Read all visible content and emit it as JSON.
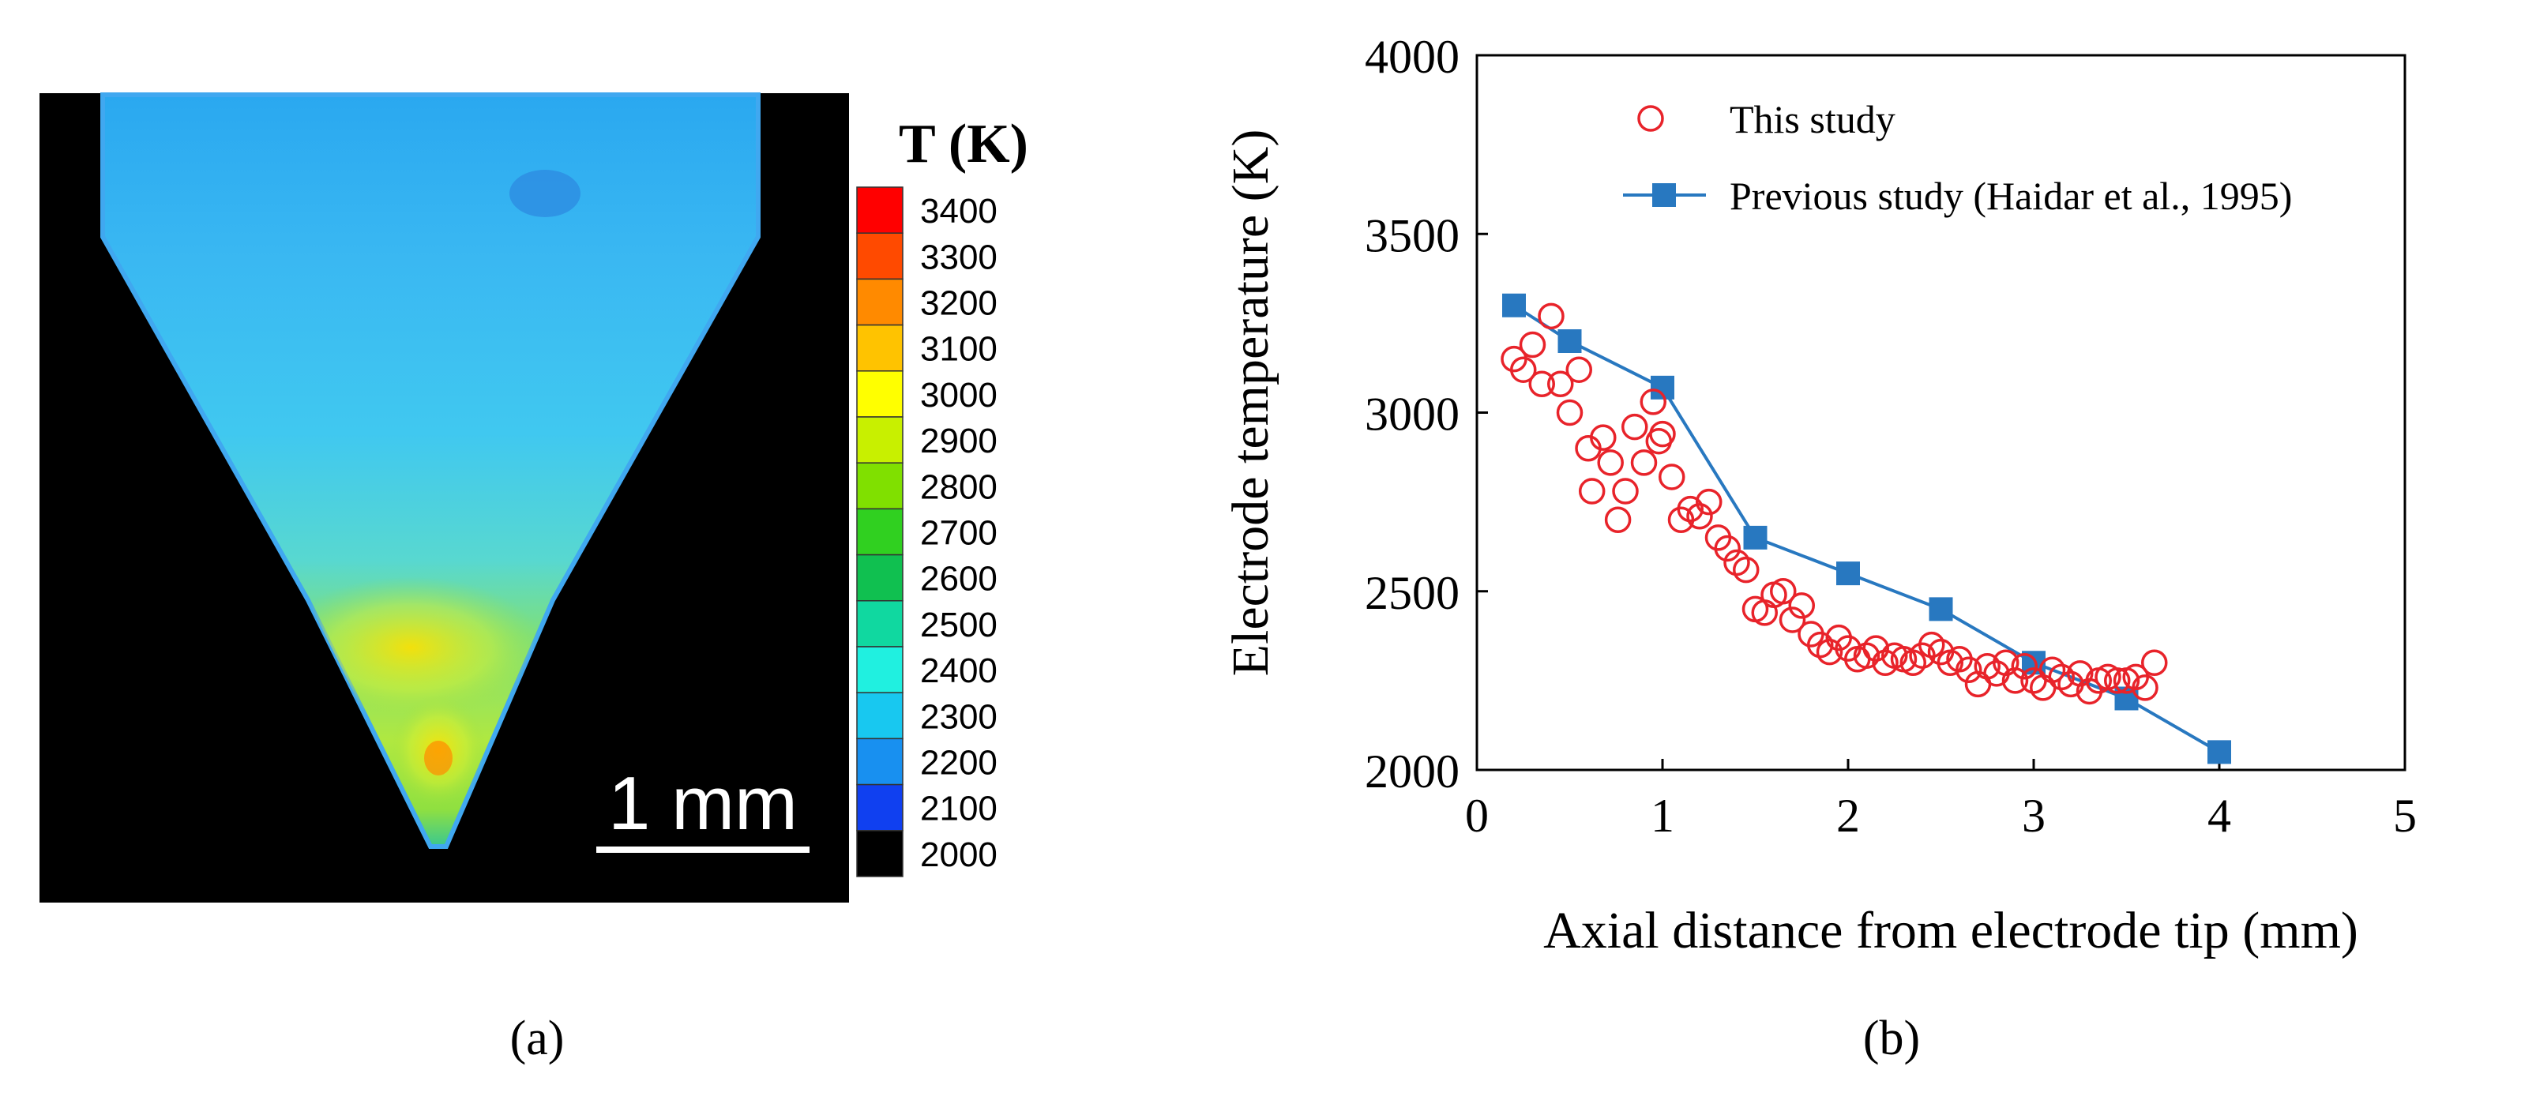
{
  "panel_a": {
    "label": "(a)",
    "colorbar_title": "T (K)",
    "colorbar_levels": [
      "3400",
      "3300",
      "3200",
      "3100",
      "3000",
      "2900",
      "2800",
      "2700",
      "2600",
      "2500",
      "2400",
      "2300",
      "2200",
      "2100",
      "2000"
    ],
    "colorbar_colors": [
      "#ff0000",
      "#ff4a00",
      "#ff8a00",
      "#ffc300",
      "#ffff00",
      "#c8f000",
      "#80e000",
      "#30d020",
      "#10c050",
      "#10d8a0",
      "#20f0e0",
      "#18c8f0",
      "#1890f0",
      "#1040f0",
      "#000000"
    ],
    "scale_bar_label": "1 mm",
    "background_color": "#000000"
  },
  "panel_b": {
    "label": "(b)",
    "chart_data": {
      "type": "scatter",
      "xlabel": "Axial distance from electrode tip (mm)",
      "ylabel": "Electrode temperature (K)",
      "xlim": [
        0,
        5
      ],
      "ylim": [
        2000,
        4000
      ],
      "xticks": [
        0,
        1,
        2,
        3,
        4,
        5
      ],
      "yticks": [
        2000,
        2500,
        3000,
        3500,
        4000
      ],
      "legend_position": "top-left",
      "series": [
        {
          "name": "This study",
          "marker": "open-circle",
          "color": "#e8232a",
          "points": [
            [
              0.2,
              3150
            ],
            [
              0.25,
              3120
            ],
            [
              0.3,
              3190
            ],
            [
              0.35,
              3080
            ],
            [
              0.4,
              3270
            ],
            [
              0.45,
              3080
            ],
            [
              0.5,
              3000
            ],
            [
              0.55,
              3120
            ],
            [
              0.6,
              2900
            ],
            [
              0.62,
              2780
            ],
            [
              0.68,
              2930
            ],
            [
              0.72,
              2860
            ],
            [
              0.76,
              2700
            ],
            [
              0.8,
              2780
            ],
            [
              0.85,
              2960
            ],
            [
              0.9,
              2860
            ],
            [
              0.95,
              3030
            ],
            [
              0.98,
              2920
            ],
            [
              1.0,
              2940
            ],
            [
              1.05,
              2820
            ],
            [
              1.1,
              2700
            ],
            [
              1.15,
              2730
            ],
            [
              1.2,
              2710
            ],
            [
              1.25,
              2750
            ],
            [
              1.3,
              2650
            ],
            [
              1.35,
              2620
            ],
            [
              1.4,
              2580
            ],
            [
              1.45,
              2560
            ],
            [
              1.5,
              2450
            ],
            [
              1.55,
              2440
            ],
            [
              1.6,
              2490
            ],
            [
              1.65,
              2500
            ],
            [
              1.7,
              2420
            ],
            [
              1.75,
              2460
            ],
            [
              1.8,
              2380
            ],
            [
              1.85,
              2350
            ],
            [
              1.9,
              2330
            ],
            [
              1.95,
              2370
            ],
            [
              2.0,
              2340
            ],
            [
              2.05,
              2310
            ],
            [
              2.1,
              2320
            ],
            [
              2.15,
              2340
            ],
            [
              2.2,
              2300
            ],
            [
              2.25,
              2320
            ],
            [
              2.3,
              2310
            ],
            [
              2.35,
              2300
            ],
            [
              2.4,
              2320
            ],
            [
              2.45,
              2350
            ],
            [
              2.5,
              2330
            ],
            [
              2.55,
              2300
            ],
            [
              2.6,
              2310
            ],
            [
              2.65,
              2280
            ],
            [
              2.7,
              2240
            ],
            [
              2.75,
              2290
            ],
            [
              2.8,
              2270
            ],
            [
              2.85,
              2300
            ],
            [
              2.9,
              2250
            ],
            [
              2.95,
              2290
            ],
            [
              3.0,
              2250
            ],
            [
              3.05,
              2230
            ],
            [
              3.1,
              2280
            ],
            [
              3.15,
              2260
            ],
            [
              3.2,
              2240
            ],
            [
              3.25,
              2270
            ],
            [
              3.3,
              2220
            ],
            [
              3.35,
              2250
            ],
            [
              3.4,
              2260
            ],
            [
              3.45,
              2250
            ],
            [
              3.5,
              2250
            ],
            [
              3.55,
              2260
            ],
            [
              3.6,
              2230
            ],
            [
              3.65,
              2300
            ]
          ]
        },
        {
          "name": "Previous study (Haidar et al., 1995)",
          "marker": "filled-square-line",
          "color": "#2878c0",
          "points": [
            [
              0.2,
              3300
            ],
            [
              0.5,
              3200
            ],
            [
              1.0,
              3070
            ],
            [
              1.5,
              2650
            ],
            [
              2.0,
              2550
            ],
            [
              2.5,
              2450
            ],
            [
              3.0,
              2300
            ],
            [
              3.5,
              2200
            ],
            [
              4.0,
              2050
            ]
          ]
        }
      ]
    }
  }
}
